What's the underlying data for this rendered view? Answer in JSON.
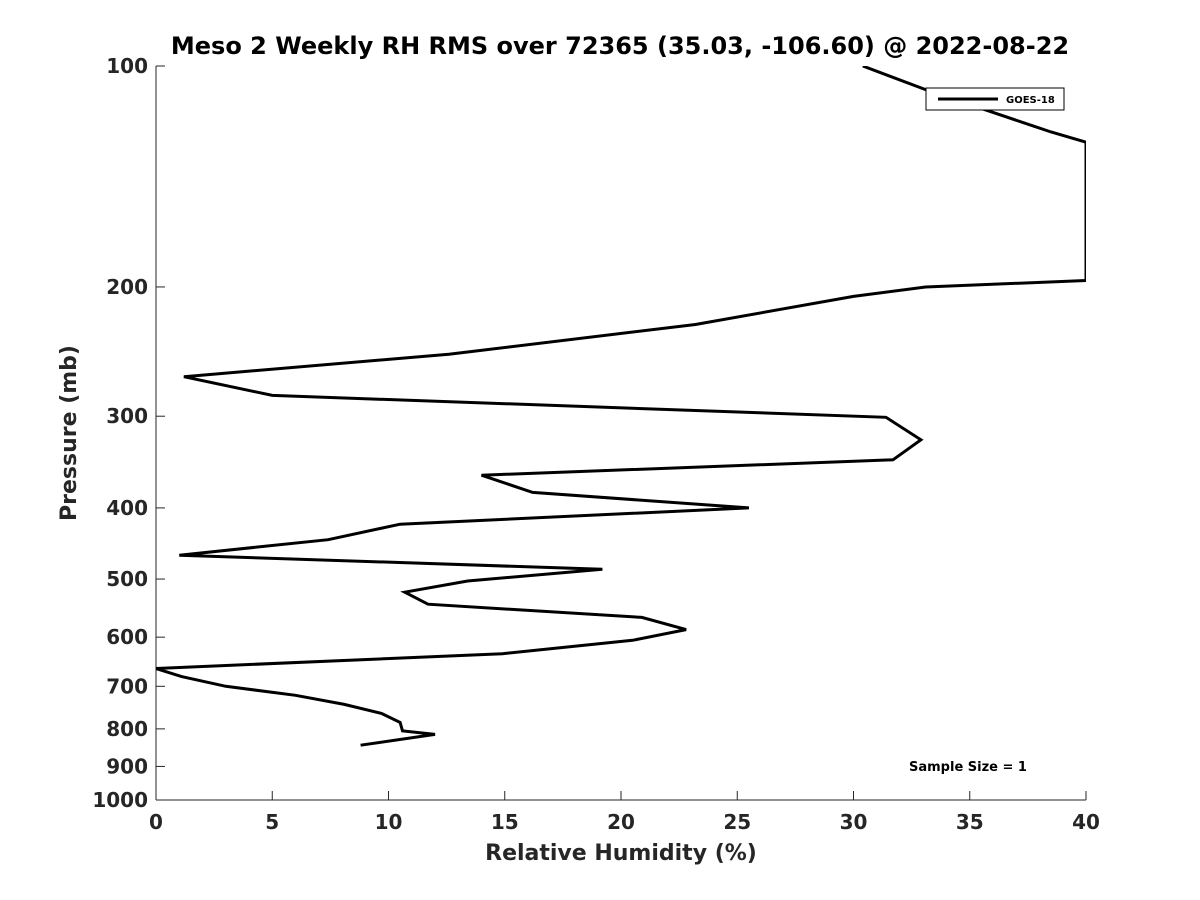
{
  "chart_data": {
    "type": "line",
    "title": "Meso 2 Weekly RH RMS over 72365 (35.03, -106.60) @ 2022-08-22",
    "xlabel": "Relative Humidity (%)",
    "ylabel": "Pressure (mb)",
    "xlim": [
      0,
      40
    ],
    "ylim": [
      100,
      1000
    ],
    "y_scale": "log",
    "y_direction": "reversed",
    "grid": false,
    "legend_position": "top-right",
    "x_ticks": [
      0,
      5,
      10,
      15,
      20,
      25,
      30,
      35,
      40
    ],
    "y_ticks": [
      100,
      200,
      300,
      400,
      500,
      600,
      700,
      800,
      900,
      1000
    ],
    "x_tick_labels": [
      "0",
      "5",
      "10",
      "15",
      "20",
      "25",
      "30",
      "35",
      "40"
    ],
    "y_tick_labels": [
      "100",
      "200",
      "300",
      "400",
      "500",
      "600",
      "700",
      "800",
      "900",
      "1000"
    ],
    "annotation": "Sample Size = 1",
    "series": [
      {
        "name": "GOES-18",
        "color": "#000000",
        "points": [
          [
            30.4,
            100
          ],
          [
            33.2,
            108
          ],
          [
            38.5,
            123
          ],
          [
            40.0,
            127
          ],
          [
            40.0,
            196
          ],
          [
            33.1,
            200
          ],
          [
            30.0,
            206
          ],
          [
            23.2,
            225
          ],
          [
            12.6,
            247
          ],
          [
            1.2,
            265
          ],
          [
            5.0,
            281
          ],
          [
            31.4,
            301
          ],
          [
            32.9,
            323
          ],
          [
            31.7,
            344
          ],
          [
            14.0,
            361
          ],
          [
            16.2,
            381
          ],
          [
            25.5,
            400
          ],
          [
            10.5,
            421
          ],
          [
            7.4,
            442
          ],
          [
            1.0,
            464
          ],
          [
            19.2,
            485
          ],
          [
            13.4,
            503
          ],
          [
            10.7,
            521
          ],
          [
            11.7,
            541
          ],
          [
            20.9,
            564
          ],
          [
            22.8,
            586
          ],
          [
            20.5,
            606
          ],
          [
            14.9,
            632
          ],
          [
            0.0,
            662
          ],
          [
            1.1,
            679
          ],
          [
            3.0,
            700
          ],
          [
            6.0,
            720
          ],
          [
            8.1,
            741
          ],
          [
            9.7,
            762
          ],
          [
            10.5,
            784
          ],
          [
            10.6,
            805
          ],
          [
            12.0,
            814
          ],
          [
            8.8,
            842
          ]
        ]
      }
    ]
  }
}
